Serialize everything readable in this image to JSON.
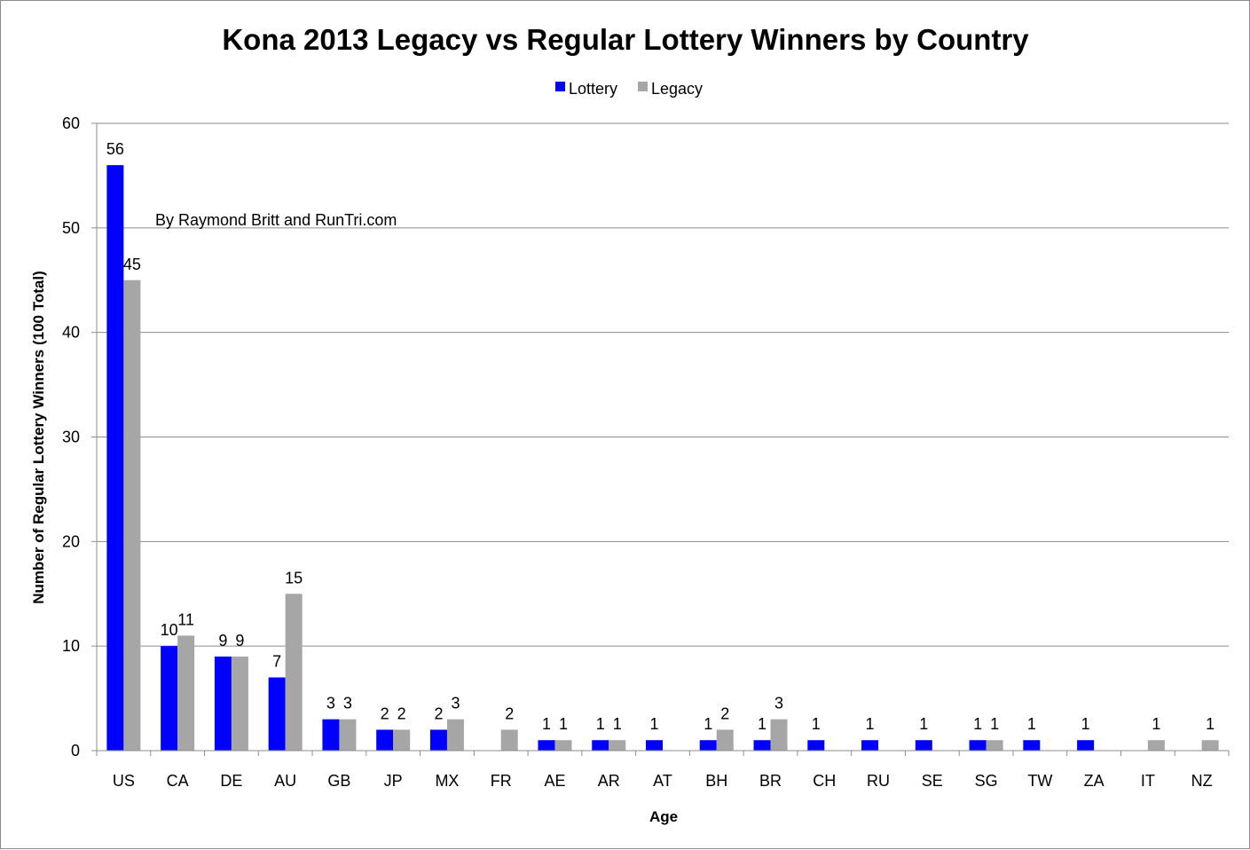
{
  "chart_data": {
    "type": "bar",
    "title": "Kona 2013 Legacy vs Regular Lottery Winners by Country",
    "xlabel": "Age",
    "ylabel": "Number of Regular Lottery Winners (100 Total)",
    "annotation": "By Raymond Britt and RunTri.com",
    "categories": [
      "US",
      "CA",
      "DE",
      "AU",
      "GB",
      "JP",
      "MX",
      "FR",
      "AE",
      "AR",
      "AT",
      "BH",
      "BR",
      "CH",
      "RU",
      "SE",
      "SG",
      "TW",
      "ZA",
      "IT",
      "NZ"
    ],
    "series": [
      {
        "name": "Lottery",
        "color": "#0000ff",
        "values": [
          56,
          10,
          9,
          7,
          3,
          2,
          2,
          null,
          1,
          1,
          1,
          1,
          1,
          1,
          1,
          1,
          1,
          1,
          1,
          null,
          null
        ]
      },
      {
        "name": "Legacy",
        "color": "#a6a6a6",
        "values": [
          45,
          11,
          9,
          15,
          3,
          2,
          3,
          2,
          1,
          1,
          null,
          2,
          3,
          null,
          null,
          null,
          1,
          null,
          null,
          1,
          1
        ]
      }
    ],
    "ylim": [
      0,
      60
    ],
    "yticks": [
      0,
      10,
      20,
      30,
      40,
      50,
      60
    ],
    "grid": true,
    "legend": "top-center"
  }
}
